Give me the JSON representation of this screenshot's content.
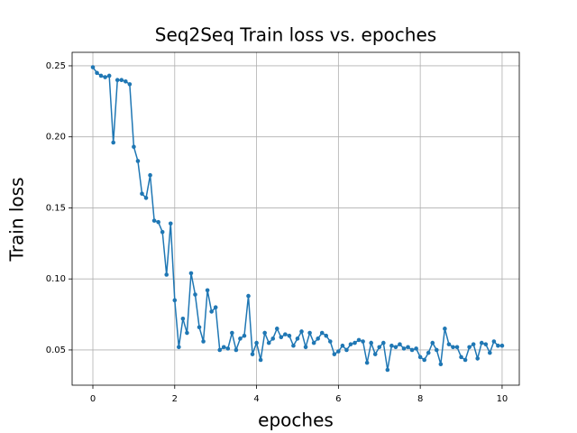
{
  "chart_data": {
    "type": "line",
    "title": "Seq2Seq Train loss vs. epoches",
    "x_label": "epoches",
    "y_label": "Train loss",
    "x": [
      0,
      0.1,
      0.2,
      0.3,
      0.4,
      0.5,
      0.6,
      0.7,
      0.8,
      0.9,
      1,
      1.1,
      1.2,
      1.3,
      1.4,
      1.5,
      1.6,
      1.7,
      1.8,
      1.9,
      2,
      2.1,
      2.2,
      2.3,
      2.4,
      2.5,
      2.6,
      2.7,
      2.8,
      2.9,
      3,
      3.1,
      3.2,
      3.3,
      3.4,
      3.5,
      3.6,
      3.7,
      3.8,
      3.9,
      4,
      4.1,
      4.2,
      4.3,
      4.4,
      4.5,
      4.6,
      4.7,
      4.8,
      4.9,
      5,
      5.1,
      5.2,
      5.3,
      5.4,
      5.5,
      5.6,
      5.7,
      5.8,
      5.9,
      6,
      6.1,
      6.2,
      6.3,
      6.4,
      6.5,
      6.6,
      6.7,
      6.8,
      6.9,
      7,
      7.1,
      7.2,
      7.3,
      7.4,
      7.5,
      7.6,
      7.7,
      7.8,
      7.9,
      8,
      8.1,
      8.2,
      8.3,
      8.4,
      8.5,
      8.6,
      8.7,
      8.8,
      8.9,
      9,
      9.1,
      9.2,
      9.3,
      9.4,
      9.5,
      9.6,
      9.7,
      9.8,
      9.9,
      10
    ],
    "series": [
      {
        "color": "#1f77b4",
        "values": [
          0.249,
          0.245,
          0.243,
          0.242,
          0.243,
          0.196,
          0.24,
          0.24,
          0.239,
          0.237,
          0.193,
          0.183,
          0.16,
          0.157,
          0.173,
          0.141,
          0.14,
          0.133,
          0.103,
          0.139,
          0.085,
          0.052,
          0.072,
          0.062,
          0.104,
          0.089,
          0.066,
          0.056,
          0.092,
          0.077,
          0.08,
          0.05,
          0.052,
          0.051,
          0.062,
          0.05,
          0.058,
          0.06,
          0.088,
          0.047,
          0.055,
          0.043,
          0.062,
          0.055,
          0.058,
          0.065,
          0.059,
          0.061,
          0.06,
          0.053,
          0.058,
          0.063,
          0.052,
          0.062,
          0.055,
          0.058,
          0.062,
          0.06,
          0.056,
          0.047,
          0.049,
          0.053,
          0.05,
          0.054,
          0.055,
          0.057,
          0.056,
          0.041,
          0.055,
          0.047,
          0.052,
          0.055,
          0.036,
          0.053,
          0.052,
          0.054,
          0.051,
          0.052,
          0.05,
          0.051,
          0.045,
          0.043,
          0.048,
          0.055,
          0.05,
          0.04,
          0.065,
          0.054,
          0.052,
          0.052,
          0.045,
          0.043,
          0.052,
          0.054,
          0.044,
          0.055,
          0.054,
          0.048,
          0.056,
          0.053,
          0.053
        ]
      }
    ],
    "xlim": [
      -0.507,
      10.42
    ],
    "ylim": [
      0.0252,
      0.2595
    ],
    "xticks": [
      0,
      2,
      4,
      6,
      8,
      10
    ],
    "yticks": [
      0.05,
      {
        "value": 0.1,
        "label": "0.10"
      },
      0.15,
      {
        "value": 0.2,
        "label": "0.20"
      },
      0.25
    ],
    "grid": true
  }
}
